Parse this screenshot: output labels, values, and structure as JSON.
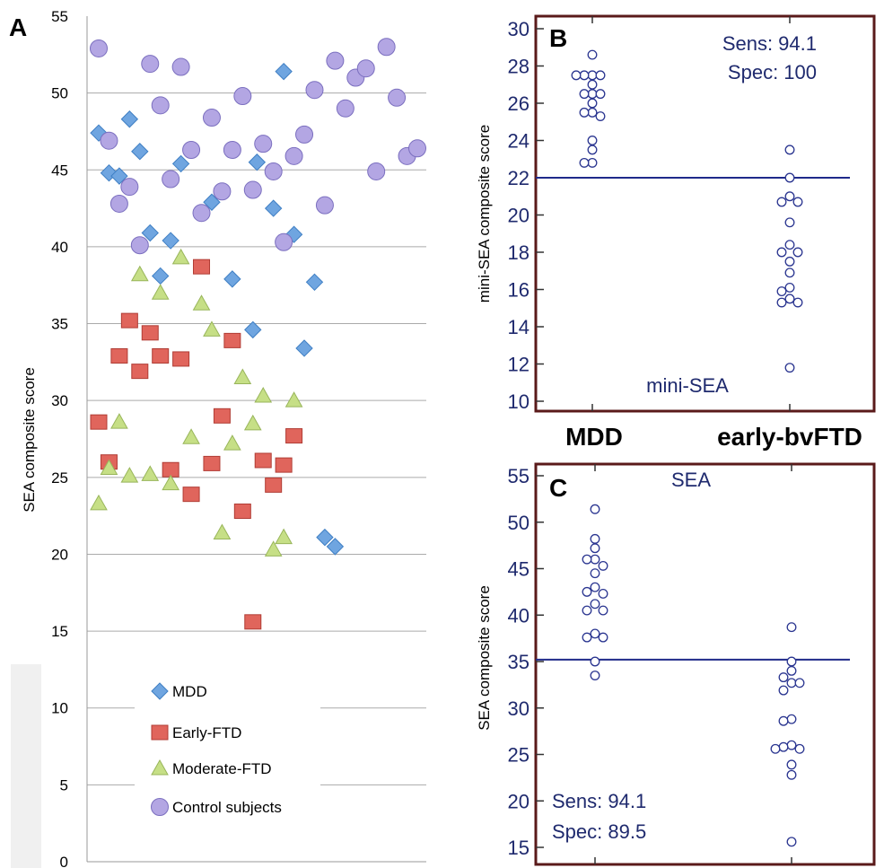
{
  "chart_data": [
    {
      "panel": "A",
      "type": "scatter",
      "ylabel": "SEA composite score",
      "ylim": [
        0,
        55
      ],
      "yticks": [
        0,
        5,
        10,
        15,
        20,
        25,
        30,
        35,
        40,
        45,
        50,
        55
      ],
      "grid": true,
      "legend_position": "bottom-left",
      "colors": {
        "MDD": "#6fa5e0",
        "Early-FTD": "#e0655c",
        "Moderate-FTD": "#c6df86",
        "Control subjects": "#b3a6e3"
      },
      "series": [
        {
          "name": "MDD",
          "marker": "diamond",
          "x": [
            1,
            1.5,
            2,
            2.5,
            3,
            3.5,
            4,
            4.5,
            5,
            6.5,
            7.5,
            8.5,
            8.7,
            9.5,
            10,
            10.5,
            11,
            11.5,
            12,
            12.5
          ],
          "y": [
            47.4,
            44.8,
            44.6,
            48.3,
            46.2,
            40.9,
            38.1,
            40.4,
            45.4,
            42.9,
            37.9,
            34.6,
            45.5,
            42.5,
            51.4,
            40.8,
            33.4,
            37.7,
            21.1,
            20.5
          ]
        },
        {
          "name": "Early-FTD",
          "marker": "square",
          "x": [
            1,
            1.5,
            2,
            2.5,
            3,
            3.5,
            4,
            4.5,
            5,
            5.5,
            6,
            6.5,
            7,
            7.5,
            8,
            8.5,
            9,
            9.5,
            10,
            10.5
          ],
          "y": [
            28.6,
            26.0,
            32.9,
            35.2,
            31.9,
            34.4,
            32.9,
            25.5,
            32.7,
            23.9,
            38.7,
            25.9,
            29.0,
            33.9,
            22.8,
            15.6,
            26.1,
            24.5,
            25.8,
            27.7
          ]
        },
        {
          "name": "Moderate-FTD",
          "marker": "triangle",
          "x": [
            1,
            1.5,
            2,
            2.5,
            3,
            3.5,
            4,
            4.5,
            5,
            5.5,
            6,
            6.5,
            7,
            7.5,
            8,
            8.5,
            9,
            9.5,
            10,
            10.5
          ],
          "y": [
            23.3,
            25.6,
            28.6,
            25.1,
            38.2,
            25.2,
            37.0,
            24.6,
            39.3,
            27.6,
            36.3,
            34.6,
            21.4,
            27.2,
            31.5,
            28.5,
            30.3,
            20.3,
            21.1,
            30.0
          ]
        },
        {
          "name": "Control subjects",
          "marker": "circle",
          "x": [
            1,
            1.5,
            2,
            2.5,
            3,
            3.5,
            4,
            4.5,
            5,
            5.5,
            6,
            6.5,
            7,
            7.5,
            8,
            8.5,
            9,
            9.5,
            10,
            10.5,
            11,
            11.5,
            12,
            12.5,
            13,
            13.5,
            14,
            14.5,
            15,
            15.5,
            16,
            16.5
          ],
          "y": [
            52.9,
            46.9,
            42.8,
            43.9,
            40.1,
            51.9,
            49.2,
            44.4,
            51.7,
            46.3,
            42.2,
            48.4,
            43.6,
            46.3,
            49.8,
            43.7,
            46.7,
            44.9,
            40.3,
            45.9,
            47.3,
            50.2,
            42.7,
            52.1,
            49.0,
            51.0,
            51.6,
            44.9,
            53.0,
            49.7,
            45.9,
            46.4
          ]
        }
      ]
    },
    {
      "panel": "B",
      "type": "scatter",
      "title": "mini-SEA",
      "ylabel": "mini-SEA composite score",
      "ylim": [
        10,
        30
      ],
      "yticks": [
        10,
        12,
        14,
        16,
        18,
        20,
        22,
        24,
        26,
        28,
        30
      ],
      "categories": [
        "MDD",
        "early-bvFTD"
      ],
      "cutoff": 22.0,
      "sens": "Sens: 94.1",
      "spec": "Spec: 100",
      "series": [
        {
          "name": "MDD",
          "values": [
            28.6,
            27.5,
            27.5,
            27.5,
            27.5,
            27.0,
            26.5,
            26.5,
            26.5,
            26.0,
            25.5,
            25.5,
            25.3,
            24.0,
            23.5,
            22.8,
            22.8
          ]
        },
        {
          "name": "early-bvFTD",
          "values": [
            23.5,
            22.0,
            21.0,
            20.7,
            20.7,
            19.6,
            18.4,
            18.0,
            18.0,
            17.5,
            16.9,
            16.1,
            15.9,
            15.5,
            15.3,
            15.3,
            11.8
          ]
        }
      ]
    },
    {
      "panel": "C",
      "type": "scatter",
      "title": "SEA",
      "ylabel": "SEA composite score",
      "ylim": [
        15,
        55
      ],
      "yticks": [
        15,
        20,
        25,
        30,
        35,
        40,
        45,
        50,
        55
      ],
      "categories": [
        "MDD",
        "early-bvFTD"
      ],
      "cutoff": 35.2,
      "sens": "Sens: 94.1",
      "spec": "Spec: 89.5",
      "series": [
        {
          "name": "MDD",
          "values": [
            51.4,
            48.2,
            47.2,
            46.0,
            46.0,
            45.3,
            44.5,
            43.0,
            42.5,
            42.3,
            41.2,
            40.5,
            40.5,
            38.0,
            37.6,
            37.6,
            35.0,
            33.5
          ]
        },
        {
          "name": "early-bvFTD",
          "values": [
            38.7,
            35.0,
            34.0,
            33.3,
            32.7,
            32.7,
            31.9,
            28.8,
            28.6,
            26.0,
            25.8,
            25.6,
            25.6,
            23.9,
            22.8,
            15.6
          ]
        }
      ]
    }
  ]
}
